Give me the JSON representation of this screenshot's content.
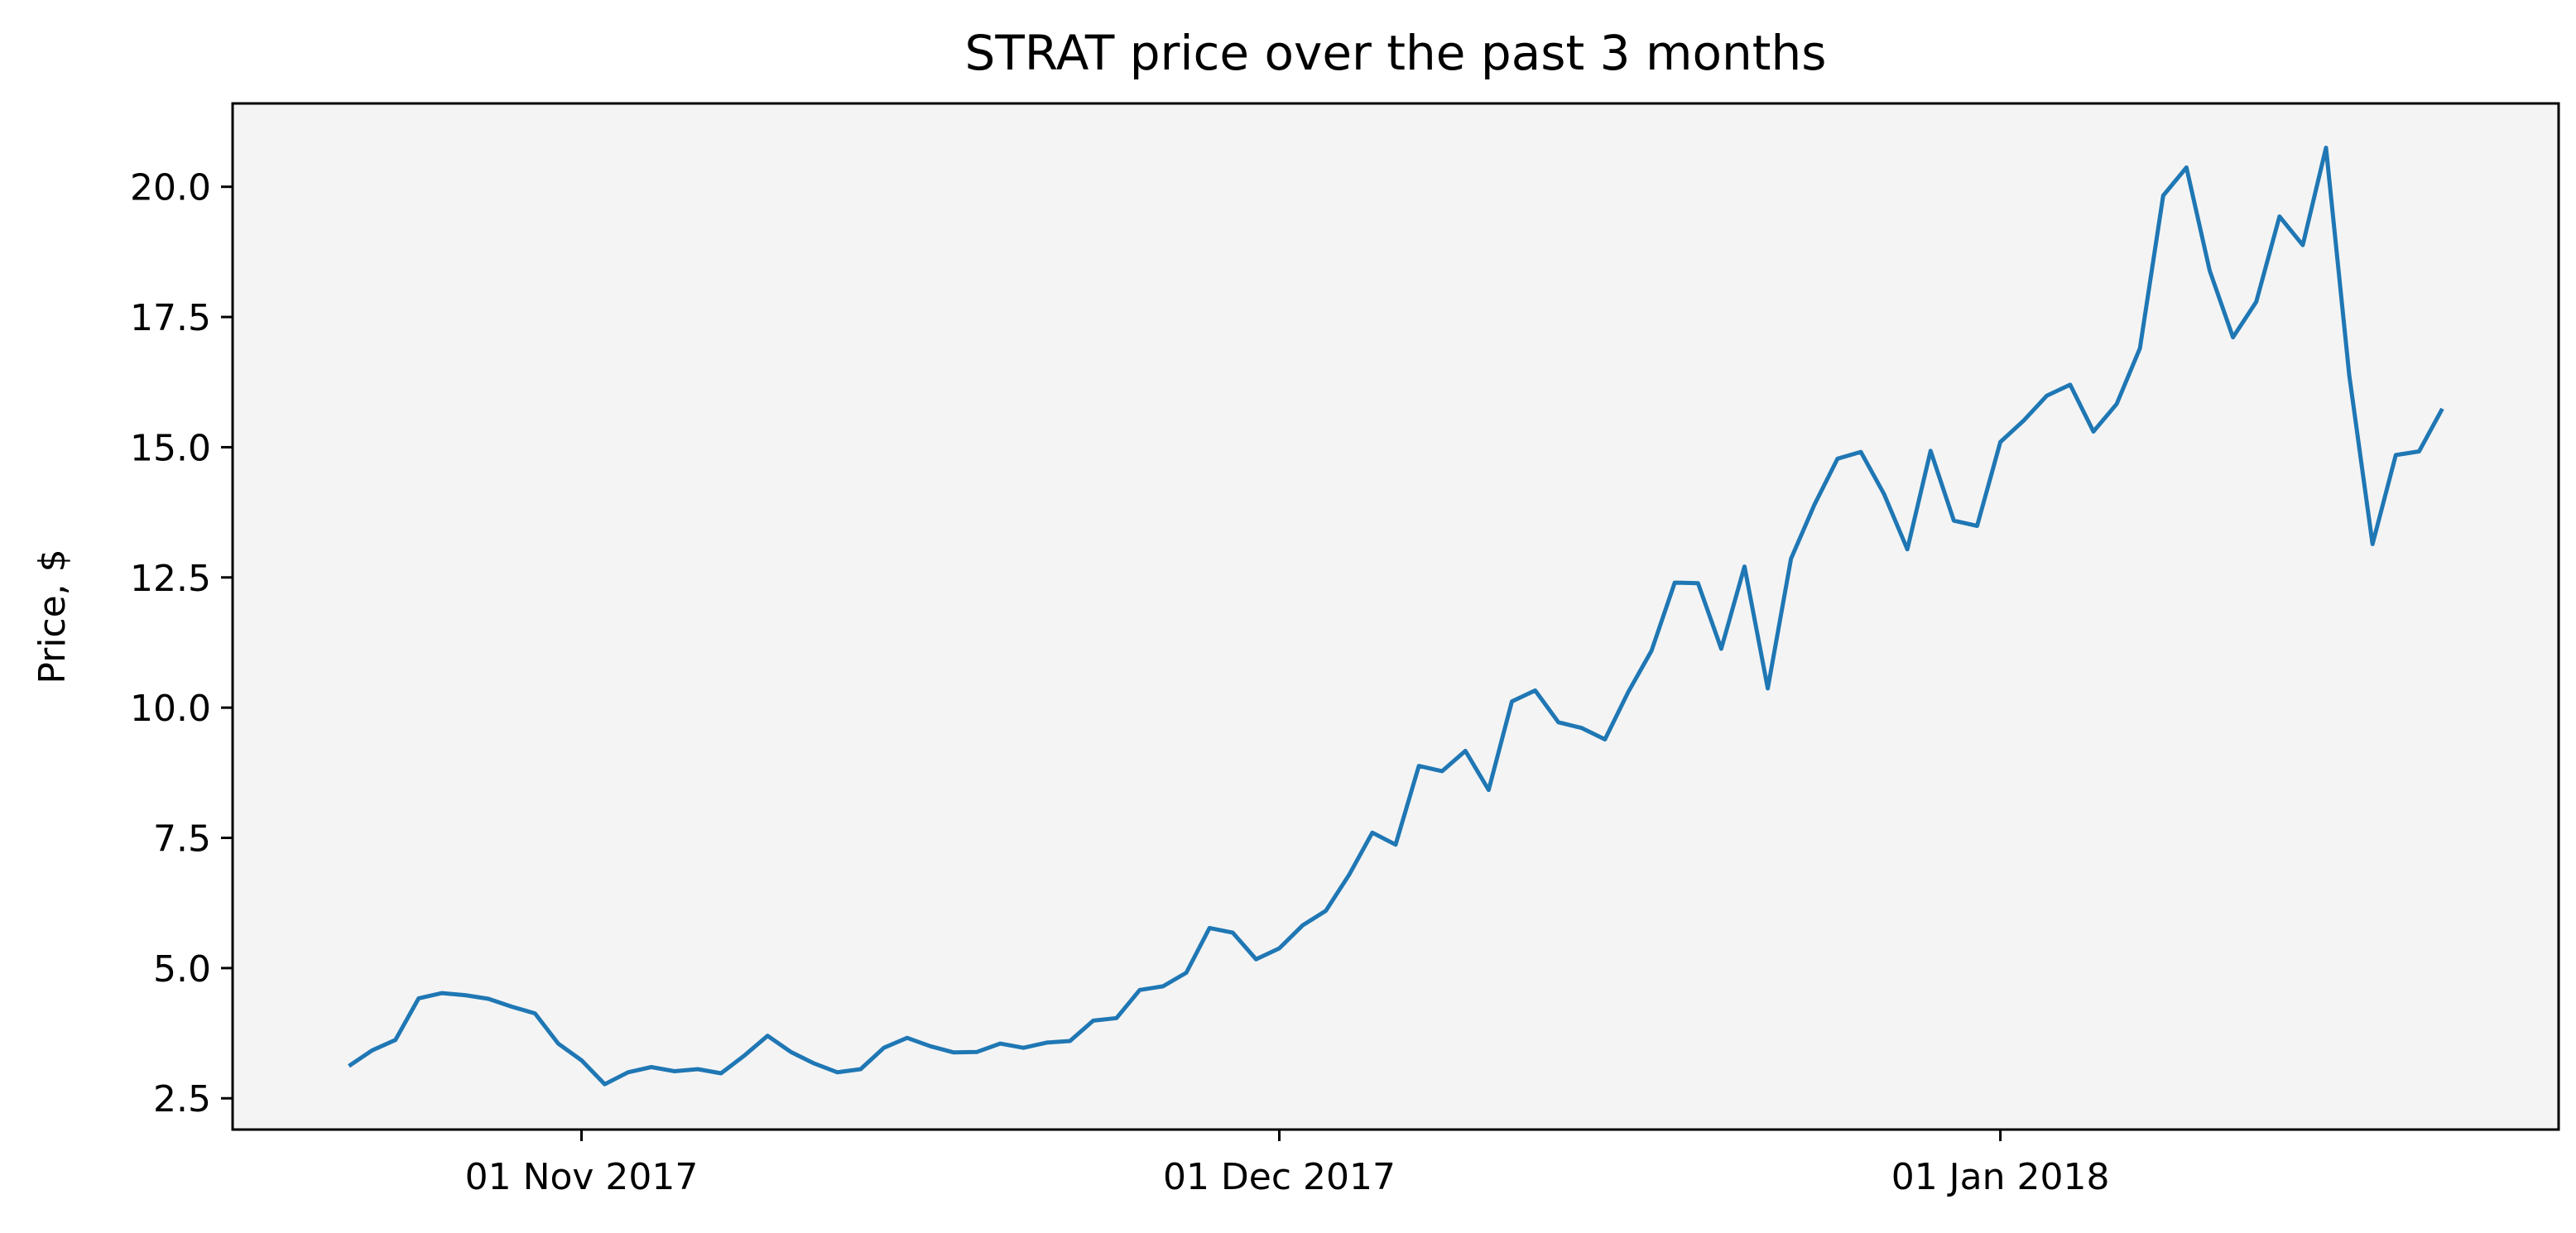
{
  "chart_data": {
    "type": "line",
    "title": "STRAT price over the past 3 months",
    "xlabel": "",
    "ylabel": "Price, $",
    "x_ticks": [
      {
        "label": "01 Nov 2017",
        "date": "2017-11-01"
      },
      {
        "label": "01 Dec 2017",
        "date": "2017-12-01"
      },
      {
        "label": "01 Jan 2018",
        "date": "2018-01-01"
      }
    ],
    "y_ticks": [
      "2.5",
      "5.0",
      "7.5",
      "10.0",
      "12.5",
      "15.0",
      "17.5",
      "20.0"
    ],
    "ylim": [
      1.9,
      21.6
    ],
    "xlim": [
      "2017-10-17",
      "2018-01-25"
    ],
    "grid": false,
    "background": "#f4f4f4",
    "line_color": "#1f77b4",
    "series": [
      {
        "points": [
          [
            "2017-10-22",
            3.12
          ],
          [
            "2017-10-23",
            3.42
          ],
          [
            "2017-10-24",
            3.62
          ],
          [
            "2017-10-25",
            4.42
          ],
          [
            "2017-10-26",
            4.52
          ],
          [
            "2017-10-27",
            4.48
          ],
          [
            "2017-10-28",
            4.41
          ],
          [
            "2017-10-29",
            4.26
          ],
          [
            "2017-10-30",
            4.13
          ],
          [
            "2017-10-31",
            3.55
          ],
          [
            "2017-11-01",
            3.23
          ],
          [
            "2017-11-02",
            2.77
          ],
          [
            "2017-11-03",
            3.0
          ],
          [
            "2017-11-04",
            3.1
          ],
          [
            "2017-11-05",
            3.02
          ],
          [
            "2017-11-06",
            3.06
          ],
          [
            "2017-11-07",
            2.98
          ],
          [
            "2017-11-08",
            3.32
          ],
          [
            "2017-11-09",
            3.7
          ],
          [
            "2017-11-10",
            3.39
          ],
          [
            "2017-11-11",
            3.17
          ],
          [
            "2017-11-12",
            3.0
          ],
          [
            "2017-11-13",
            3.06
          ],
          [
            "2017-11-14",
            3.47
          ],
          [
            "2017-11-15",
            3.66
          ],
          [
            "2017-11-16",
            3.5
          ],
          [
            "2017-11-17",
            3.38
          ],
          [
            "2017-11-18",
            3.39
          ],
          [
            "2017-11-19",
            3.55
          ],
          [
            "2017-11-20",
            3.47
          ],
          [
            "2017-11-21",
            3.57
          ],
          [
            "2017-11-22",
            3.6
          ],
          [
            "2017-11-23",
            3.99
          ],
          [
            "2017-11-24",
            4.04
          ],
          [
            "2017-11-25",
            4.58
          ],
          [
            "2017-11-26",
            4.65
          ],
          [
            "2017-11-27",
            4.91
          ],
          [
            "2017-11-28",
            5.77
          ],
          [
            "2017-11-29",
            5.68
          ],
          [
            "2017-11-30",
            5.17
          ],
          [
            "2017-12-01",
            5.38
          ],
          [
            "2017-12-02",
            5.82
          ],
          [
            "2017-12-03",
            6.1
          ],
          [
            "2017-12-04",
            6.79
          ],
          [
            "2017-12-05",
            7.6
          ],
          [
            "2017-12-06",
            7.37
          ],
          [
            "2017-12-07",
            8.88
          ],
          [
            "2017-12-08",
            8.78
          ],
          [
            "2017-12-09",
            9.17
          ],
          [
            "2017-12-10",
            8.42
          ],
          [
            "2017-12-11",
            10.12
          ],
          [
            "2017-12-12",
            10.33
          ],
          [
            "2017-12-13",
            9.72
          ],
          [
            "2017-12-14",
            9.61
          ],
          [
            "2017-12-15",
            9.39
          ],
          [
            "2017-12-16",
            10.3
          ],
          [
            "2017-12-17",
            11.09
          ],
          [
            "2017-12-18",
            12.4
          ],
          [
            "2017-12-19",
            12.39
          ],
          [
            "2017-12-20",
            11.13
          ],
          [
            "2017-12-21",
            12.71
          ],
          [
            "2017-12-22",
            10.37
          ],
          [
            "2017-12-23",
            12.86
          ],
          [
            "2017-12-24",
            13.89
          ],
          [
            "2017-12-25",
            14.78
          ],
          [
            "2017-12-26",
            14.91
          ],
          [
            "2017-12-27",
            14.1
          ],
          [
            "2017-12-28",
            13.04
          ],
          [
            "2017-12-29",
            14.93
          ],
          [
            "2017-12-30",
            13.59
          ],
          [
            "2017-12-31",
            13.49
          ],
          [
            "2018-01-01",
            15.1
          ],
          [
            "2018-01-02",
            15.51
          ],
          [
            "2018-01-03",
            15.99
          ],
          [
            "2018-01-04",
            16.2
          ],
          [
            "2018-01-05",
            15.3
          ],
          [
            "2018-01-06",
            15.83
          ],
          [
            "2018-01-07",
            16.9
          ],
          [
            "2018-01-08",
            19.83
          ],
          [
            "2018-01-09",
            20.37
          ],
          [
            "2018-01-10",
            18.39
          ],
          [
            "2018-01-11",
            17.11
          ],
          [
            "2018-01-12",
            17.79
          ],
          [
            "2018-01-13",
            19.43
          ],
          [
            "2018-01-14",
            18.88
          ],
          [
            "2018-01-15",
            20.75
          ],
          [
            "2018-01-16",
            16.38
          ],
          [
            "2018-01-17",
            13.14
          ],
          [
            "2018-01-18",
            14.85
          ],
          [
            "2018-01-19",
            14.92
          ],
          [
            "2018-01-20",
            15.74
          ]
        ]
      }
    ]
  }
}
